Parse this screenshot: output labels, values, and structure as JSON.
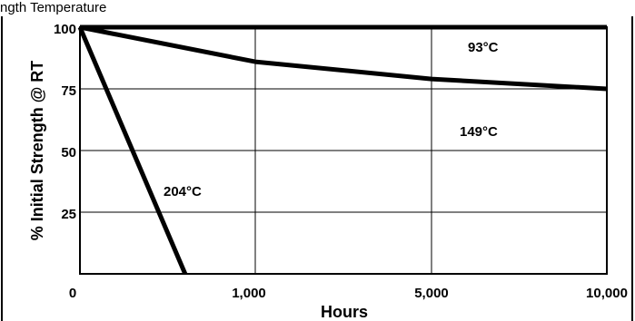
{
  "chart_data": {
    "type": "line",
    "header_fragment": "ngth Temperature",
    "xlabel": "Hours",
    "ylabel": "% Initial Strength @ RT",
    "x_tick_labels": [
      "0",
      "1,000",
      "5,000",
      "10,000"
    ],
    "y_tick_labels": [
      "25",
      "50",
      "75",
      "100"
    ],
    "x_scale": "categorical-nonlinear",
    "ylim": [
      0,
      100
    ],
    "grid": true,
    "legend": "none",
    "series": [
      {
        "name": "93°C",
        "x": [
          "0",
          "10,000"
        ],
        "y": [
          100,
          100
        ]
      },
      {
        "name": "149°C",
        "x": [
          "0",
          "1,000",
          "5,000",
          "10,000"
        ],
        "y": [
          100,
          86,
          79,
          75
        ]
      },
      {
        "name": "204°C",
        "x": [
          "0",
          "600"
        ],
        "y": [
          100,
          0
        ]
      }
    ]
  }
}
